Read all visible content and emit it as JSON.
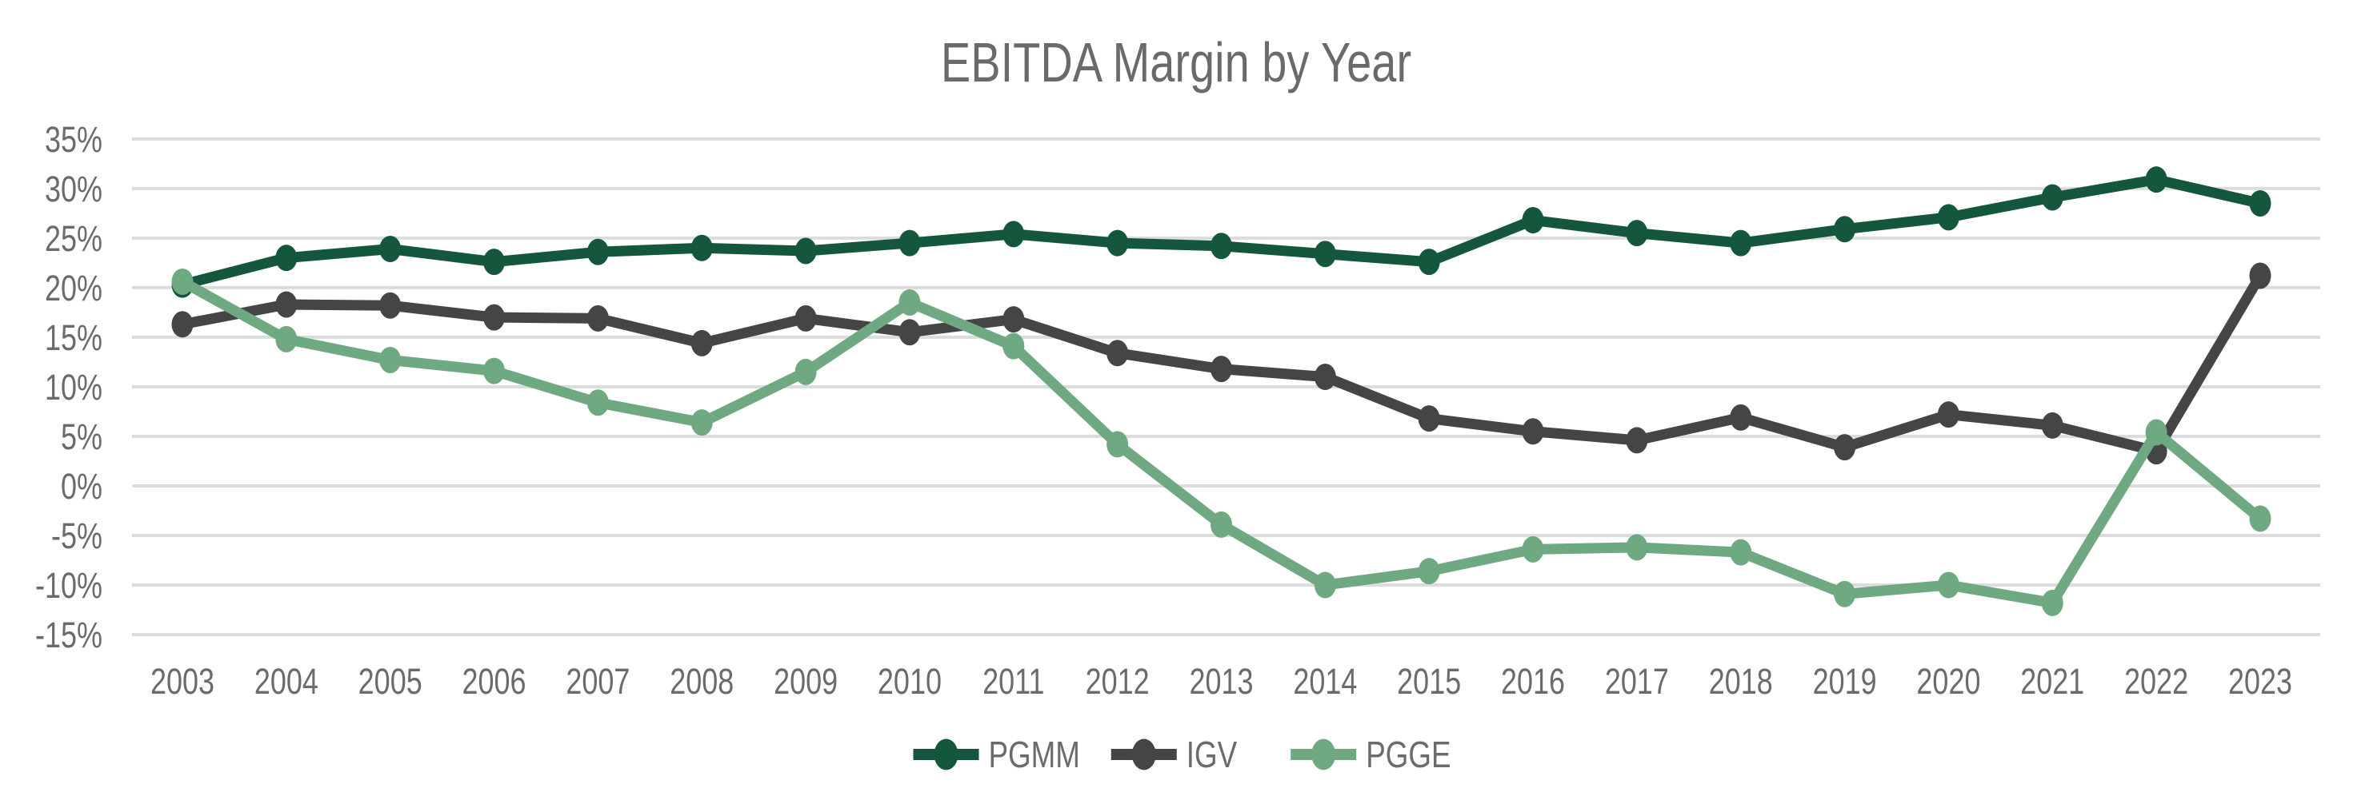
{
  "chart_data": {
    "type": "line",
    "title": "EBITDA Margin by Year",
    "y_unit": "%",
    "grid": "horizontal-only",
    "legend_position": "bottom-center",
    "ylim": [
      -17.5,
      37.5
    ],
    "yticks": [
      35,
      30,
      25,
      20,
      15,
      10,
      5,
      0,
      -5,
      -10,
      -15
    ],
    "y_tick_labels": [
      "35%",
      "30%",
      "25%",
      "20%",
      "15%",
      "10%",
      "5%",
      "0%",
      "-5%",
      "-10%",
      "-15%"
    ],
    "x": [
      "2003",
      "2004",
      "2005",
      "2006",
      "2007",
      "2008",
      "2009",
      "2010",
      "2011",
      "2012",
      "2013",
      "2014",
      "2015",
      "2016",
      "2017",
      "2018",
      "2019",
      "2020",
      "2021",
      "2022",
      "2023"
    ],
    "series": [
      {
        "name": "PGMM",
        "color": "#15573c",
        "values": [
          20.3,
          23.0,
          23.9,
          22.6,
          23.6,
          24.0,
          23.7,
          24.5,
          25.4,
          24.5,
          24.2,
          23.4,
          22.6,
          26.8,
          25.5,
          24.5,
          25.9,
          27.1,
          29.1,
          30.9,
          28.5
        ]
      },
      {
        "name": "IGV",
        "color": "#454545",
        "values": [
          16.3,
          18.3,
          18.2,
          17.0,
          16.9,
          14.4,
          16.9,
          15.5,
          16.8,
          13.4,
          11.8,
          11.0,
          6.8,
          5.5,
          4.6,
          6.9,
          3.9,
          7.2,
          6.1,
          3.5,
          21.2
        ]
      },
      {
        "name": "PGGE",
        "color": "#6fa981",
        "values": [
          20.6,
          14.8,
          12.7,
          11.6,
          8.4,
          6.4,
          11.5,
          18.5,
          14.1,
          4.2,
          -3.9,
          -10.0,
          -8.6,
          -6.4,
          -6.2,
          -6.7,
          -10.9,
          -10.0,
          -11.8,
          5.4,
          -3.3
        ]
      }
    ],
    "styles": {
      "gridline_color": "#dcdcdc",
      "text_color": "#6b6b6b",
      "title_color": "#6a6a6a",
      "background_color": "#ffffff"
    }
  }
}
